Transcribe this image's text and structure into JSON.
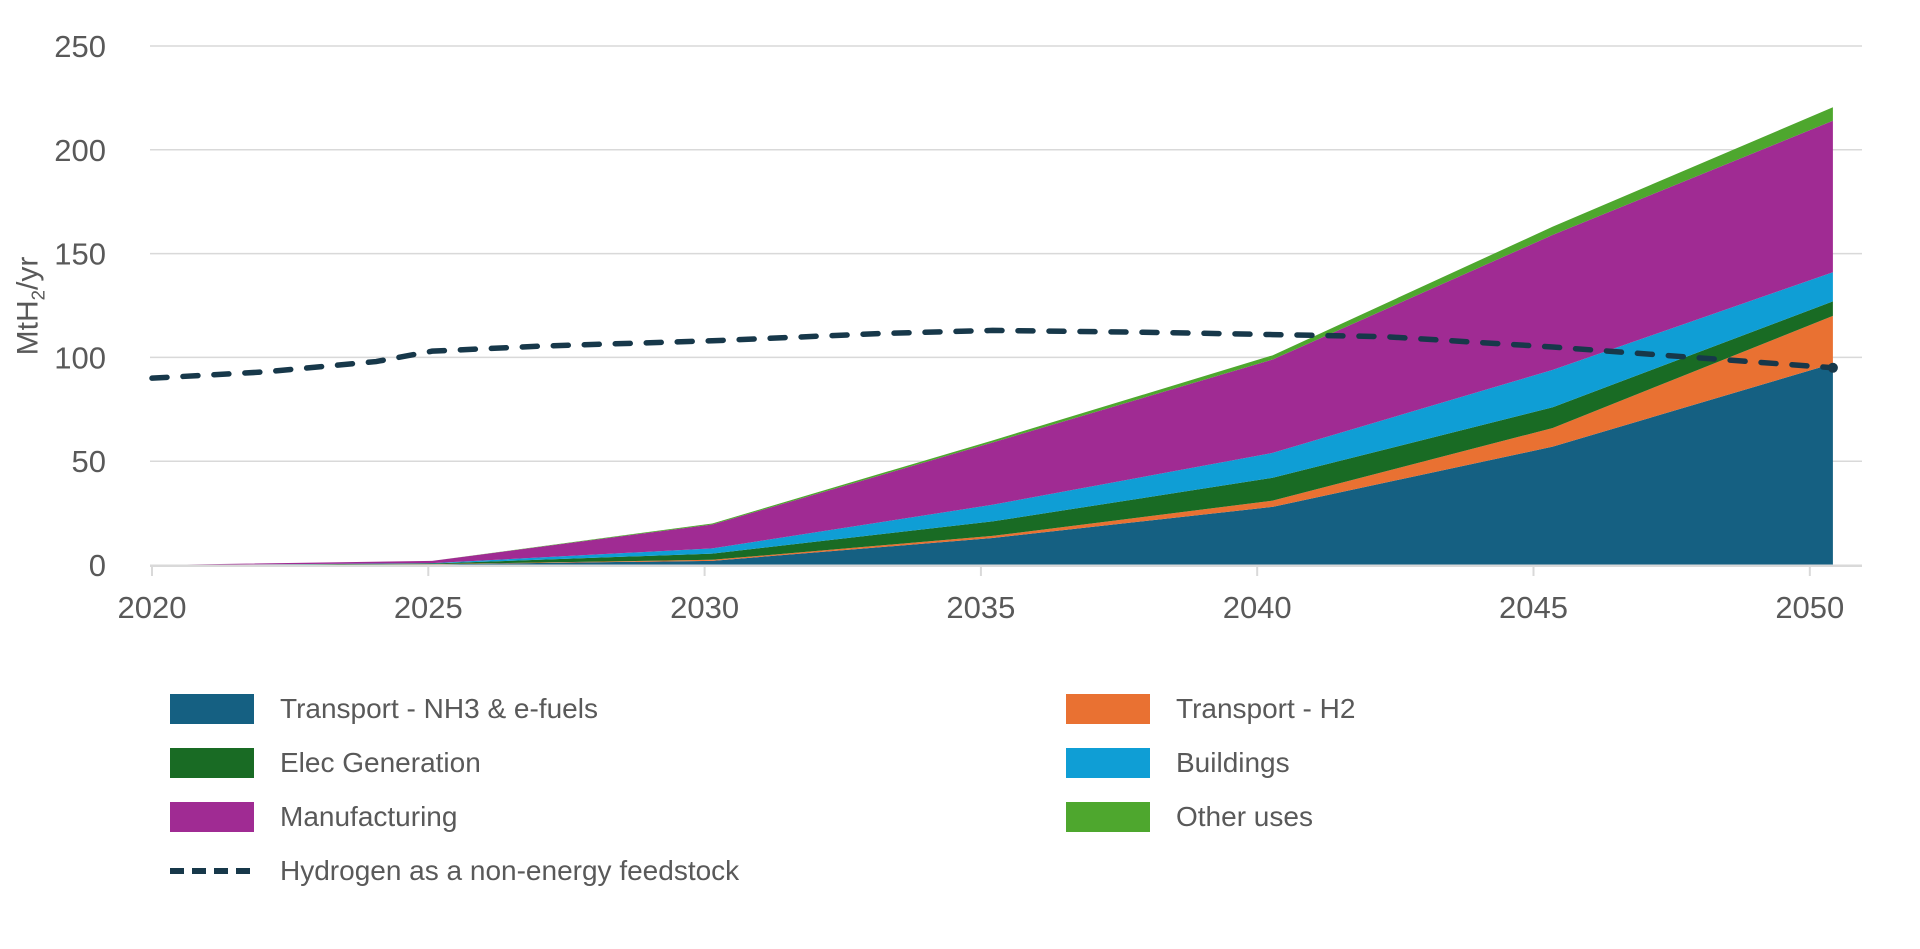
{
  "chart_data": {
    "type": "area",
    "stacked": true,
    "ylabel": {
      "prefix": "MtH",
      "sub": "2",
      "suffix": "/yr"
    },
    "xlim": [
      2020,
      2050
    ],
    "ylim": [
      0,
      250
    ],
    "x_ticks": [
      "2020",
      "2025",
      "2030",
      "2035",
      "2040",
      "2045",
      "2050"
    ],
    "y_ticks": [
      0,
      50,
      100,
      150,
      200,
      250
    ],
    "grid": "horizontal",
    "legend_position": "bottom",
    "categories": [
      2020,
      2025,
      2030,
      2035,
      2040,
      2045,
      2050
    ],
    "series": [
      {
        "name": "Transport - NH3 & e-fuels",
        "color": "#156082",
        "values": [
          0,
          0.3,
          2,
          13,
          28,
          57,
          97
        ]
      },
      {
        "name": "Transport - H2",
        "color": "#E97132",
        "values": [
          0,
          0.1,
          0.5,
          1,
          3,
          9,
          23
        ]
      },
      {
        "name": "Elec Generation",
        "color": "#196B24",
        "values": [
          0,
          0.3,
          3,
          7,
          11,
          10,
          7
        ]
      },
      {
        "name": "Buildings",
        "color": "#0F9ED5",
        "values": [
          0,
          0.2,
          2.5,
          8,
          12,
          18,
          14
        ]
      },
      {
        "name": "Manufacturing",
        "color": "#A02B93",
        "values": [
          0,
          1.1,
          11.5,
          30,
          45,
          65,
          73
        ]
      },
      {
        "name": "Other uses",
        "color": "#4EA72E",
        "values": [
          0,
          0,
          0.5,
          1,
          2,
          4,
          6.5
        ]
      }
    ],
    "line_series": {
      "name": "Hydrogen as a non-energy feedstock",
      "color": "#17384A",
      "style": "dashed",
      "x": [
        2020,
        2022,
        2024,
        2025,
        2027,
        2030,
        2033,
        2035,
        2038,
        2040,
        2042,
        2045,
        2048,
        2050
      ],
      "values": [
        90,
        93,
        98,
        103,
        105.5,
        108,
        111.5,
        113,
        112,
        111,
        110,
        105,
        99,
        95
      ],
      "end_dot": true
    },
    "colors": {
      "grid": "#D9D9D9",
      "axis": "#D9D9D9",
      "text": "#595959"
    }
  }
}
